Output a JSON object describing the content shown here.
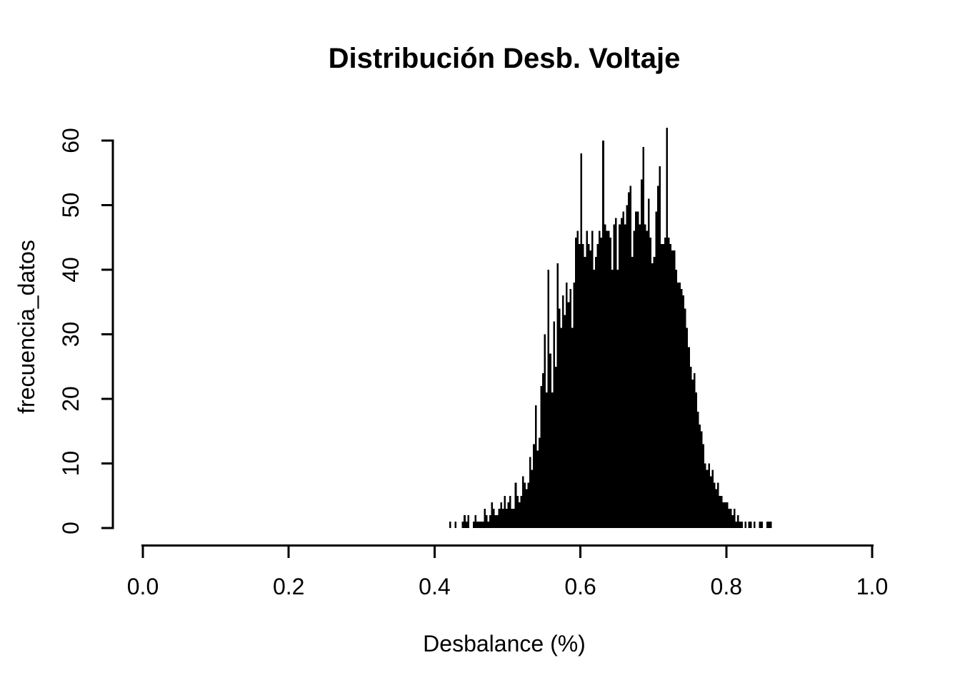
{
  "figure": {
    "background_color": "#ffffff",
    "foreground_color": "#000000"
  },
  "chart_data": {
    "type": "bar",
    "subtype": "histogram",
    "title": "Distribución Desb. Voltaje",
    "xlabel": "Desbalance (%)",
    "ylabel": "frecuencia_datos",
    "xlim": [
      0.0,
      1.0
    ],
    "ylim": [
      0,
      60
    ],
    "grid": false,
    "legend": "none",
    "bar_color": "#000000",
    "axis_color": "#000000",
    "x_ticks": {
      "values": [
        0.0,
        0.2,
        0.4,
        0.6,
        0.8,
        1.0
      ],
      "labels": [
        "0.0",
        "0.2",
        "0.4",
        "0.6",
        "0.8",
        "1.0"
      ]
    },
    "y_ticks": {
      "values": [
        0,
        10,
        20,
        30,
        40,
        50,
        60
      ],
      "labels": [
        "0",
        "10",
        "20",
        "30",
        "40",
        "50",
        "60"
      ]
    },
    "histogram": {
      "x_start": 0.42,
      "binwidth": 0.0025,
      "counts": [
        1,
        0,
        0,
        1,
        0,
        0,
        0,
        1,
        2,
        1,
        2,
        0,
        0,
        1,
        2,
        1,
        1,
        1,
        1,
        3,
        2,
        1,
        2,
        4,
        3,
        2,
        2,
        3,
        4,
        3,
        5,
        3,
        4,
        5,
        3,
        3,
        7,
        5,
        4,
        5,
        8,
        7,
        6,
        7,
        11,
        9,
        13,
        19,
        12,
        14,
        22,
        24,
        30,
        21,
        40,
        27,
        21,
        32,
        25,
        41,
        34,
        31,
        36,
        33,
        38,
        35,
        37,
        31,
        38,
        45,
        46,
        44,
        58,
        44,
        42,
        46,
        44,
        43,
        46,
        40,
        42,
        44,
        46,
        45,
        60,
        47,
        46,
        46,
        45,
        40,
        47,
        48,
        40,
        47,
        48,
        49,
        47,
        50,
        52,
        53,
        42,
        46,
        49,
        49,
        47,
        54,
        59,
        47,
        46,
        51,
        45,
        41,
        42,
        49,
        53,
        56,
        44,
        44,
        45,
        62,
        45,
        44,
        43,
        43,
        40,
        38,
        38,
        37,
        36,
        34,
        31,
        28,
        25,
        23,
        24,
        21,
        18,
        16,
        15,
        13,
        10,
        9,
        10,
        8,
        9,
        7,
        6,
        7,
        5,
        5,
        4,
        4,
        4,
        3,
        3,
        2,
        3,
        1,
        2,
        1,
        1,
        0,
        1,
        0,
        1,
        1,
        0,
        1,
        0,
        0,
        1,
        1,
        0,
        0,
        1,
        1,
        1
      ]
    }
  }
}
